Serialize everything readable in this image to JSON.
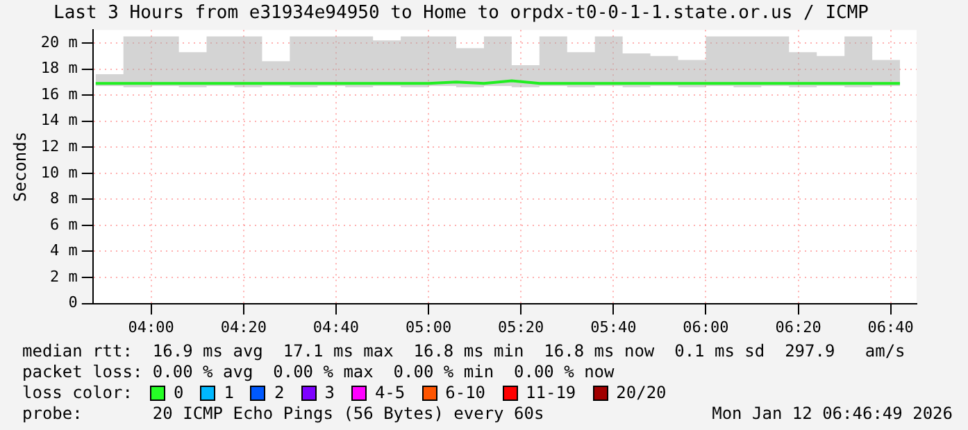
{
  "chart_data": {
    "type": "line",
    "title": "Last 3 Hours from e31934e94950 to Home to orpdx-t0-0-1-1.state.or.us / ICMP",
    "ylabel": "Seconds",
    "x": [
      3.8,
      3.9,
      4.0,
      4.1,
      4.2,
      4.3,
      4.4,
      4.5,
      4.6,
      4.7,
      4.8,
      4.9,
      5.0,
      5.1,
      5.2,
      5.3,
      5.4,
      5.5,
      5.6,
      5.7,
      5.8,
      5.9,
      6.0,
      6.1,
      6.2,
      6.3,
      6.4,
      6.5,
      6.6,
      6.7
    ],
    "series": [
      {
        "color": "#22ee22",
        "values": [
          16.9,
          16.9,
          16.9,
          16.9,
          16.9,
          16.9,
          16.9,
          16.9,
          16.9,
          16.9,
          16.9,
          16.9,
          16.9,
          17.0,
          16.9,
          17.1,
          16.9,
          16.9,
          16.9,
          16.9,
          16.9,
          16.9,
          16.9,
          16.9,
          16.9,
          16.9,
          16.9,
          16.9,
          16.9,
          16.9
        ],
        "lower": [
          16.7,
          16.6,
          16.7,
          16.6,
          16.7,
          16.6,
          16.7,
          16.6,
          16.7,
          16.6,
          16.7,
          16.6,
          16.7,
          16.6,
          16.7,
          16.6,
          16.7,
          16.6,
          16.7,
          16.6,
          16.7,
          16.6,
          16.7,
          16.6,
          16.7,
          16.6,
          16.7,
          16.6,
          16.7,
          16.7
        ],
        "upper": [
          17.6,
          20.5,
          20.5,
          19.3,
          20.5,
          20.5,
          18.6,
          20.5,
          20.5,
          20.5,
          20.2,
          20.5,
          20.5,
          19.6,
          20.5,
          18.3,
          20.5,
          19.3,
          20.5,
          19.2,
          19.0,
          18.7,
          20.5,
          20.5,
          20.5,
          19.3,
          19.0,
          20.5,
          18.7,
          17.6
        ]
      }
    ],
    "xlim": [
      3.79,
      6.76
    ],
    "xticks": [
      {
        "value": 4,
        "label": "04:00"
      },
      {
        "value": 4.3333,
        "label": "04:20"
      },
      {
        "value": 4.6667,
        "label": "04:40"
      },
      {
        "value": 5,
        "label": "05:00"
      },
      {
        "value": 5.3333,
        "label": "05:20"
      },
      {
        "value": 5.6667,
        "label": "05:40"
      },
      {
        "value": 6,
        "label": "06:00"
      },
      {
        "value": 6.3333,
        "label": "06:20"
      },
      {
        "value": 6.6667,
        "label": "06:40"
      }
    ],
    "ylim": [
      0,
      21
    ],
    "yticks": [
      0,
      {
        "value": 2,
        "label": "2 m"
      },
      {
        "value": 4,
        "label": "4 m"
      },
      {
        "value": 6,
        "label": "6 m"
      },
      {
        "value": 8,
        "label": "8 m"
      },
      {
        "value": 10,
        "label": "10 m"
      },
      {
        "value": 12,
        "label": "12 m"
      },
      {
        "value": 14,
        "label": "14 m"
      },
      {
        "value": 16,
        "label": "16 m"
      },
      {
        "value": 18,
        "label": "18 m"
      },
      {
        "value": 20,
        "label": "20 m"
      }
    ],
    "grid": true,
    "legend": false,
    "marker": "none",
    "line_style": "solid",
    "annotations": [
      "median rtt:  16.9 ms avg  17.1 ms max  16.8 ms min  16.8 ms now  0.1 ms sd  297.9   am/s",
      "packet loss: 0.00 % avg  0.00 % max  0.00 % min  0.00 % now",
      "loss color:",
      "0",
      "1",
      "2",
      "3",
      "4-5",
      "6-10",
      "11-19",
      "20/20",
      "probe:       20 ICMP Echo Pings (56 Bytes) every 60s",
      "Mon Jan 12 06:46:49 2026"
    ]
  }
}
